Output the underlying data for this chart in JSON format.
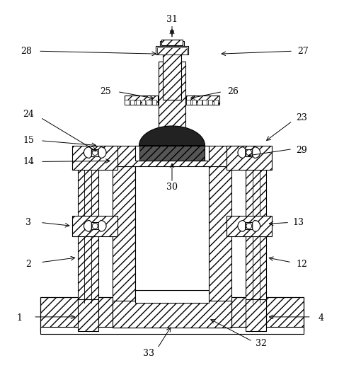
{
  "bg_color": "#ffffff",
  "lc": "#000000",
  "lw": 0.8,
  "fig_width": 4.86,
  "fig_height": 5.3
}
